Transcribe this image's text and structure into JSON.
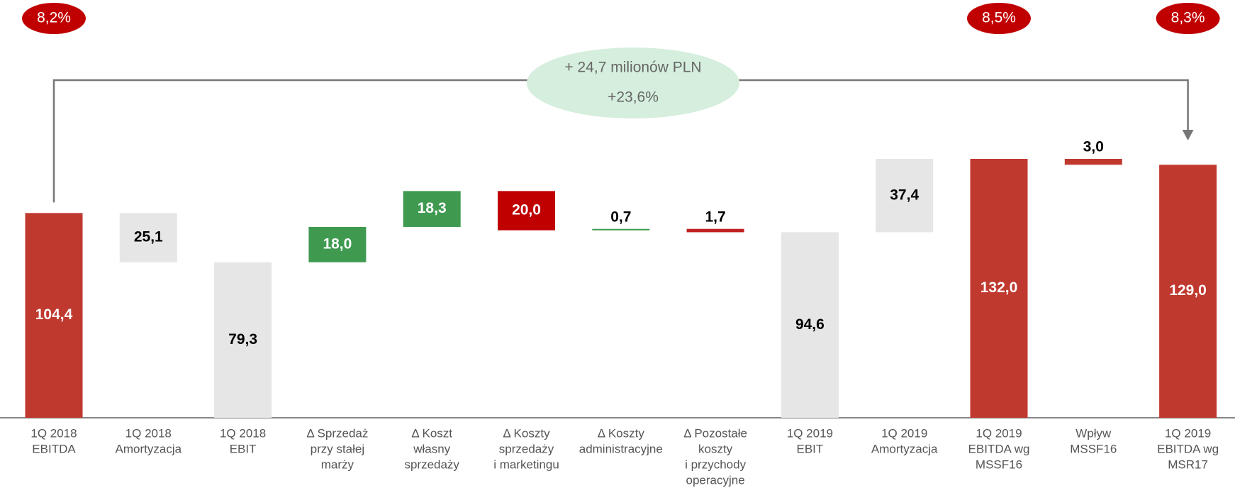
{
  "chart_data": {
    "type": "waterfall",
    "categories": [
      [
        "1Q 2018",
        "EBITDA"
      ],
      [
        "1Q 2018",
        "Amortyzacja"
      ],
      [
        "1Q 2018",
        "EBIT"
      ],
      [
        "Δ Sprzedaż",
        "przy stałej",
        "marży"
      ],
      [
        "Δ Koszt",
        "własny",
        "sprzedaży"
      ],
      [
        "Δ Koszty",
        "sprzedaży",
        "i marketingu"
      ],
      [
        "Δ Koszty",
        "administracyjne"
      ],
      [
        "Δ Pozostałe",
        "koszty",
        "i przychody",
        "operacyjne"
      ],
      [
        "1Q 2019",
        "EBIT"
      ],
      [
        "1Q 2019",
        "Amortyzacja"
      ],
      [
        "1Q 2019",
        "EBITDA wg",
        "MSSF16"
      ],
      [
        "Wpływ",
        "MSSF16"
      ],
      [
        "1Q 2019",
        "EBITDA wg",
        "MSR17"
      ]
    ],
    "values": [
      104.4,
      25.1,
      79.3,
      18.0,
      18.3,
      20.0,
      0.7,
      1.7,
      94.6,
      37.4,
      132.0,
      3.0,
      129.0
    ],
    "value_labels": [
      "104,4",
      "25,1",
      "79,3",
      "18,0",
      "18,3",
      "20,0",
      "0,7",
      "1,7",
      "94,6",
      "37,4",
      "132,0",
      "3,0",
      "129,0"
    ],
    "measure": [
      "total",
      "decrease",
      "total",
      "increase",
      "increase",
      "decrease",
      "increase",
      "decrease",
      "total",
      "increase",
      "total",
      "decrease",
      "total"
    ],
    "colors": [
      "#c0392f",
      "#e6e6e6",
      "#e6e6e6",
      "#3f9a50",
      "#3f9a50",
      "#c00000",
      "#3f9a50",
      "#c0201f",
      "#e6e6e6",
      "#e6e6e6",
      "#c0392f",
      "#c0392f",
      "#c0392f"
    ],
    "margin_labels": [
      "8,2%",
      null,
      null,
      null,
      null,
      null,
      null,
      null,
      null,
      null,
      "8,5%",
      null,
      "8,3%"
    ],
    "change_annotation": [
      "+ 24,7 milionów PLN",
      "+23,6%"
    ]
  }
}
